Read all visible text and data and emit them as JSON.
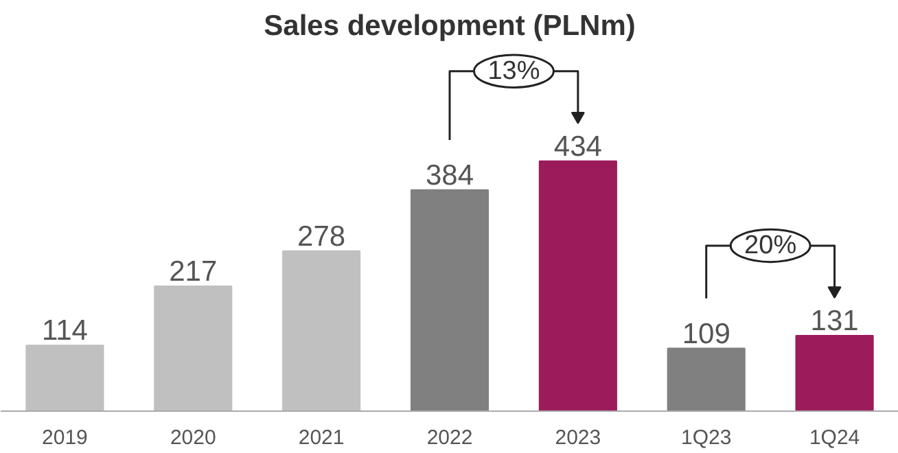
{
  "chart_data": {
    "type": "bar",
    "title": "Sales development (PLNm)",
    "categories": [
      "2019",
      "2020",
      "2021",
      "2022",
      "2023",
      "1Q23",
      "1Q24"
    ],
    "values": [
      114,
      217,
      278,
      384,
      434,
      109,
      131
    ],
    "colors": [
      "#c0c0c0",
      "#c0c0c0",
      "#c0c0c0",
      "#808080",
      "#9c1b5b",
      "#808080",
      "#9c1b5b"
    ],
    "data_labels": true,
    "annotations": [
      "13%",
      "20%"
    ]
  }
}
